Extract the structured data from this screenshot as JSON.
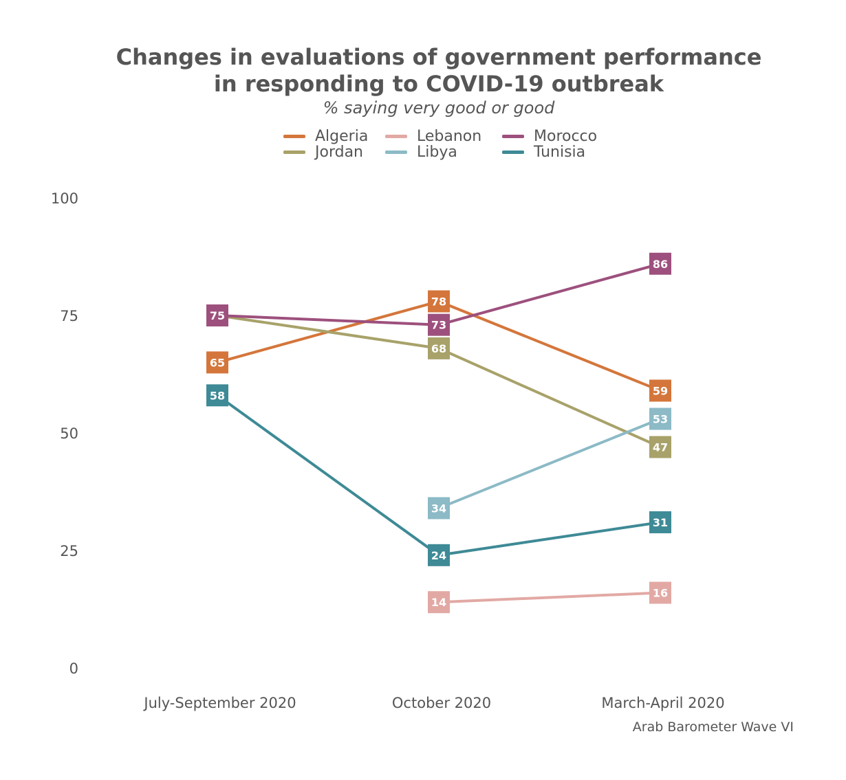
{
  "chart_data": {
    "type": "line",
    "title_lines": [
      "Changes in evaluations of government performance",
      "in responding to COVID-19 outbreak"
    ],
    "subtitle": "% saying very good or good",
    "categories": [
      "July-September 2020",
      "October 2020",
      "March-April 2020"
    ],
    "ylim": [
      0,
      100
    ],
    "yticks": [
      0,
      25,
      50,
      75,
      100
    ],
    "grid": false,
    "legend_position": "top",
    "series": [
      {
        "name": "Algeria",
        "color": "#d4763b",
        "values": [
          65,
          78,
          59
        ]
      },
      {
        "name": "Jordan",
        "color": "#a8a26a",
        "values": [
          75,
          68,
          47
        ]
      },
      {
        "name": "Lebanon",
        "color": "#e2a9a4",
        "values": [
          null,
          14,
          16
        ]
      },
      {
        "name": "Libya",
        "color": "#8cbac6",
        "values": [
          null,
          34,
          53
        ]
      },
      {
        "name": "Morocco",
        "color": "#9d507d",
        "values": [
          75,
          73,
          86
        ]
      },
      {
        "name": "Tunisia",
        "color": "#3e8a96",
        "values": [
          58,
          24,
          31
        ]
      }
    ],
    "source": "Arab Barometer Wave VI"
  }
}
